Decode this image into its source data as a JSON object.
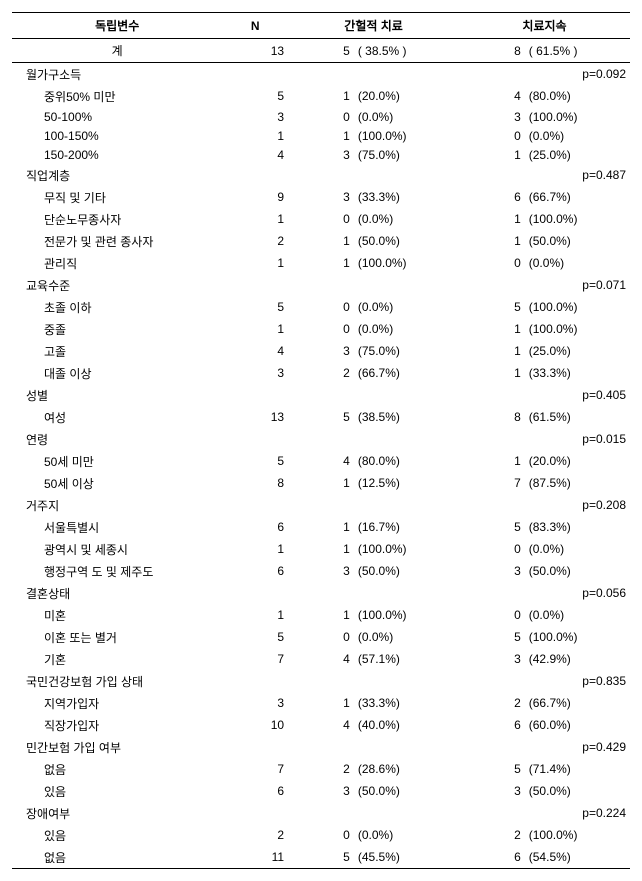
{
  "header": {
    "var": "독립변수",
    "n": "N",
    "col1": "간헐적 치료",
    "col2": "치료지속"
  },
  "total": {
    "label": "계",
    "n": "13",
    "c1n": "5",
    "c1p": "( 38.5% )",
    "c2n": "8",
    "c2p": "( 61.5% )"
  },
  "groups": [
    {
      "title": "월가구소득",
      "pval": "p=0.092",
      "rows": [
        {
          "label": "중위50% 미만",
          "n": "5",
          "c1n": "1",
          "c1p": "(20.0%)",
          "c2n": "4",
          "c2p": "(80.0%)"
        },
        {
          "label": "50-100%",
          "n": "3",
          "c1n": "0",
          "c1p": "(0.0%)",
          "c2n": "3",
          "c2p": "(100.0%)"
        },
        {
          "label": "100-150%",
          "n": "1",
          "c1n": "1",
          "c1p": "(100.0%)",
          "c2n": "0",
          "c2p": "(0.0%)"
        },
        {
          "label": "150-200%",
          "n": "4",
          "c1n": "3",
          "c1p": "(75.0%)",
          "c2n": "1",
          "c2p": "(25.0%)"
        }
      ]
    },
    {
      "title": "직업계층",
      "pval": "p=0.487",
      "rows": [
        {
          "label": "무직 및 기타",
          "n": "9",
          "c1n": "3",
          "c1p": "(33.3%)",
          "c2n": "6",
          "c2p": "(66.7%)"
        },
        {
          "label": "단순노무종사자",
          "n": "1",
          "c1n": "0",
          "c1p": "(0.0%)",
          "c2n": "1",
          "c2p": "(100.0%)"
        },
        {
          "label": "전문가 및 관련 종사자",
          "n": "2",
          "c1n": "1",
          "c1p": "(50.0%)",
          "c2n": "1",
          "c2p": "(50.0%)"
        },
        {
          "label": "관리직",
          "n": "1",
          "c1n": "1",
          "c1p": "(100.0%)",
          "c2n": "0",
          "c2p": "(0.0%)"
        }
      ]
    },
    {
      "title": "교육수준",
      "pval": "p=0.071",
      "rows": [
        {
          "label": "초졸 이하",
          "n": "5",
          "c1n": "0",
          "c1p": "(0.0%)",
          "c2n": "5",
          "c2p": "(100.0%)"
        },
        {
          "label": "중졸",
          "n": "1",
          "c1n": "0",
          "c1p": "(0.0%)",
          "c2n": "1",
          "c2p": "(100.0%)"
        },
        {
          "label": "고졸",
          "n": "4",
          "c1n": "3",
          "c1p": "(75.0%)",
          "c2n": "1",
          "c2p": "(25.0%)"
        },
        {
          "label": "대졸 이상",
          "n": "3",
          "c1n": "2",
          "c1p": "(66.7%)",
          "c2n": "1",
          "c2p": "(33.3%)"
        }
      ]
    },
    {
      "title": "성별",
      "pval": "p=0.405",
      "rows": [
        {
          "label": "여성",
          "n": "13",
          "c1n": "5",
          "c1p": "(38.5%)",
          "c2n": "8",
          "c2p": "(61.5%)"
        }
      ]
    },
    {
      "title": "연령",
      "pval": "p=0.015",
      "rows": [
        {
          "label": "50세 미만",
          "n": "5",
          "c1n": "4",
          "c1p": "(80.0%)",
          "c2n": "1",
          "c2p": "(20.0%)"
        },
        {
          "label": "50세 이상",
          "n": "8",
          "c1n": "1",
          "c1p": "(12.5%)",
          "c2n": "7",
          "c2p": "(87.5%)"
        }
      ]
    },
    {
      "title": "거주지",
      "pval": "p=0.208",
      "rows": [
        {
          "label": "서울특별시",
          "n": "6",
          "c1n": "1",
          "c1p": "(16.7%)",
          "c2n": "5",
          "c2p": "(83.3%)"
        },
        {
          "label": "광역시 및 세종시",
          "n": "1",
          "c1n": "1",
          "c1p": "(100.0%)",
          "c2n": "0",
          "c2p": "(0.0%)"
        },
        {
          "label": "행정구역 도 및 제주도",
          "n": "6",
          "c1n": "3",
          "c1p": "(50.0%)",
          "c2n": "3",
          "c2p": "(50.0%)"
        }
      ]
    },
    {
      "title": "결혼상태",
      "pval": "p=0.056",
      "rows": [
        {
          "label": "미혼",
          "n": "1",
          "c1n": "1",
          "c1p": "(100.0%)",
          "c2n": "0",
          "c2p": "(0.0%)"
        },
        {
          "label": "이혼 또는 별거",
          "n": "5",
          "c1n": "0",
          "c1p": "(0.0%)",
          "c2n": "5",
          "c2p": "(100.0%)"
        },
        {
          "label": "기혼",
          "n": "7",
          "c1n": "4",
          "c1p": "(57.1%)",
          "c2n": "3",
          "c2p": "(42.9%)"
        }
      ]
    },
    {
      "title": "국민건강보험 가입 상태",
      "pval": "p=0.835",
      "rows": [
        {
          "label": "지역가입자",
          "n": "3",
          "c1n": "1",
          "c1p": "(33.3%)",
          "c2n": "2",
          "c2p": "(66.7%)"
        },
        {
          "label": "직장가입자",
          "n": "10",
          "c1n": "4",
          "c1p": "(40.0%)",
          "c2n": "6",
          "c2p": "(60.0%)"
        }
      ]
    },
    {
      "title": "민간보험 가입 여부",
      "pval": "p=0.429",
      "rows": [
        {
          "label": "없음",
          "n": "7",
          "c1n": "2",
          "c1p": "(28.6%)",
          "c2n": "5",
          "c2p": "(71.4%)"
        },
        {
          "label": "있음",
          "n": "6",
          "c1n": "3",
          "c1p": "(50.0%)",
          "c2n": "3",
          "c2p": "(50.0%)"
        }
      ]
    },
    {
      "title": "장애여부",
      "pval": "p=0.224",
      "rows": [
        {
          "label": "있음",
          "n": "2",
          "c1n": "0",
          "c1p": "(0.0%)",
          "c2n": "2",
          "c2p": "(100.0%)"
        },
        {
          "label": "없음",
          "n": "11",
          "c1n": "5",
          "c1p": "(45.5%)",
          "c2n": "6",
          "c2p": "(54.5%)"
        }
      ]
    }
  ]
}
